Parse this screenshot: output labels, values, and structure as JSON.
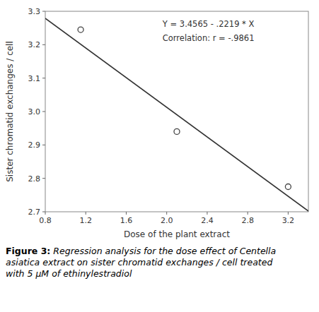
{
  "chart_data": {
    "type": "scatter",
    "xlabel": "Dose of the plant extract",
    "ylabel": "Sister chromatid exchanges / cell",
    "annotations": [
      "Y = 3.4565 - .2219 * X",
      "Correlation: r = -.9861"
    ],
    "caption": {
      "label": "Figure 3:",
      "text": " Regression analysis for the dose effect of Centella\nasiatica extract on sister chromatid exchanges / cell treated\nwith 5 μM of ethinylestradiol"
    },
    "series": [
      {
        "type": "scatter",
        "x": [
          1.15,
          2.1,
          3.2
        ],
        "values": [
          3.245,
          2.94,
          2.775
        ],
        "color": "#444444",
        "marker": "circle"
      },
      {
        "type": "line",
        "x": [
          0.8,
          3.4
        ],
        "values": [
          3.27898,
          2.70204
        ],
        "color": "#333333",
        "line_style": "solid"
      }
    ],
    "xlim": [
      0.8,
      3.4
    ],
    "ylim": [
      2.7,
      3.3
    ],
    "xticks": [
      0.8,
      1.2,
      1.6,
      {
        "value": 2.0,
        "label": "2.0"
      },
      2.4,
      2.8,
      3.2
    ],
    "yticks": [
      2.7,
      2.8,
      2.9,
      {
        "value": 3.0,
        "label": "3.0"
      },
      3.1,
      3.2,
      3.3
    ],
    "grid": false
  }
}
